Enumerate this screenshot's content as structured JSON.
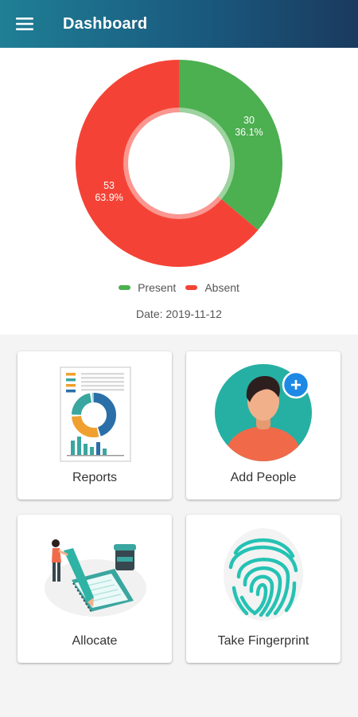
{
  "header": {
    "title": "Dashboard",
    "menu_icon": "hamburger-menu-icon",
    "gradient": [
      "#1f7f95",
      "#1a3a5e"
    ]
  },
  "chart_data": {
    "type": "pie",
    "categories": [
      "Present",
      "Absent"
    ],
    "values": [
      30,
      53
    ],
    "percent_labels": [
      "36.1%",
      "63.9%"
    ],
    "colors": [
      "#4caf50",
      "#f44336"
    ],
    "legend_position": "bottom"
  },
  "date_text": "Date: 2019-11-12",
  "cards": [
    {
      "label": "Reports",
      "icon": "reports-illustration-icon"
    },
    {
      "label": "Add People",
      "icon": "add-person-illustration-icon"
    },
    {
      "label": "Allocate",
      "icon": "allocate-illustration-icon"
    },
    {
      "label": "Take Fingerprint",
      "icon": "fingerprint-illustration-icon"
    }
  ]
}
